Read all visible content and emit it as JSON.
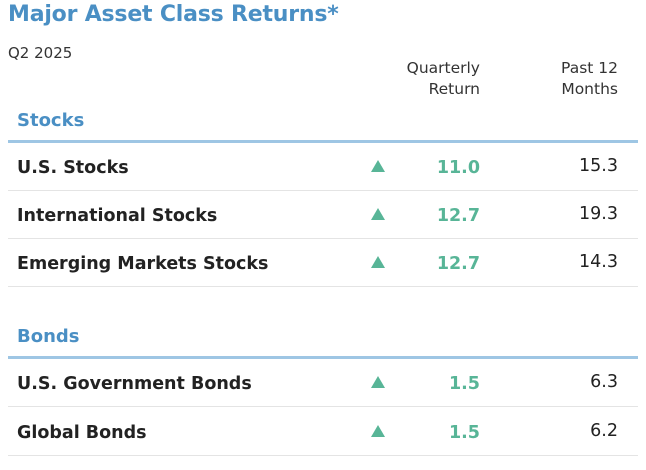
{
  "chart_data": {
    "type": "table",
    "title": "Major Asset Class Returns*",
    "subtitle": "Q2 2025",
    "columns": {
      "quarterly": [
        "Quarterly",
        "Return"
      ],
      "past12": [
        "Past 12",
        "Months"
      ]
    },
    "up_color": "#58b597",
    "accent_color": "#4a8fc4",
    "sections": [
      {
        "name": "Stocks",
        "rows": [
          {
            "label": "U.S. Stocks",
            "quarterly": "11.0",
            "past12": "15.3",
            "direction": "up"
          },
          {
            "label": "International Stocks",
            "quarterly": "12.7",
            "past12": "19.3",
            "direction": "up"
          },
          {
            "label": "Emerging Markets Stocks",
            "quarterly": "12.7",
            "past12": "14.3",
            "direction": "up"
          }
        ]
      },
      {
        "name": "Bonds",
        "rows": [
          {
            "label": "U.S. Government Bonds",
            "quarterly": "1.5",
            "past12": "6.3",
            "direction": "up"
          },
          {
            "label": "Global Bonds",
            "quarterly": "1.5",
            "past12": "6.2",
            "direction": "up"
          }
        ]
      }
    ]
  }
}
